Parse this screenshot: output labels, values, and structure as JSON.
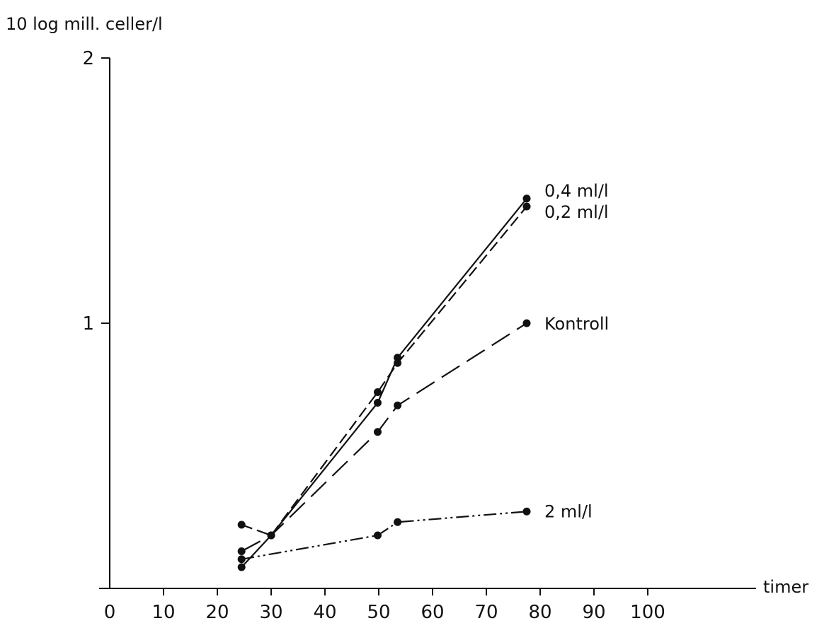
{
  "chart_data": {
    "type": "line",
    "title": "",
    "xlabel": "timer",
    "ylabel": "10 log mill. celler/l",
    "xlim": [
      0,
      100
    ],
    "ylim": [
      0,
      2
    ],
    "x_ticks": [
      "0",
      "10",
      "20",
      "30",
      "40",
      "50",
      "60",
      "70",
      "80",
      "90",
      "100"
    ],
    "y_ticks": [
      "1",
      "2"
    ],
    "grid": false,
    "legend": "labels at line ends",
    "series": [
      {
        "name": "0,4 ml/l",
        "style": "solid",
        "x": [
          24.5,
          30,
          49.8,
          53.5,
          77.5
        ],
        "y": [
          0.08,
          0.2,
          0.7,
          0.87,
          1.47
        ]
      },
      {
        "name": "0,2 ml/l",
        "style": "dashed",
        "x": [
          24.5,
          30,
          49.8,
          53.5,
          77.5
        ],
        "y": [
          0.24,
          0.2,
          0.74,
          0.85,
          1.44
        ]
      },
      {
        "name": "Kontroll",
        "style": "long-dash",
        "x": [
          24.5,
          30,
          49.8,
          53.5,
          77.5
        ],
        "y": [
          0.14,
          0.2,
          0.59,
          0.69,
          1.0
        ]
      },
      {
        "name": "2 ml/l",
        "style": "dash-dot-dot",
        "x": [
          24.5,
          49.8,
          53.5,
          77.5
        ],
        "y": [
          0.11,
          0.2,
          0.25,
          0.29
        ]
      }
    ]
  }
}
